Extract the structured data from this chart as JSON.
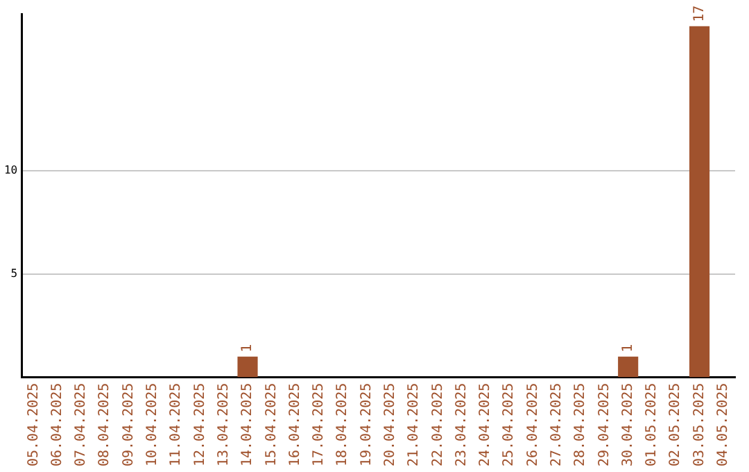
{
  "chart_data": {
    "type": "bar",
    "categories": [
      "05.04.2025",
      "06.04.2025",
      "07.04.2025",
      "08.04.2025",
      "09.04.2025",
      "10.04.2025",
      "11.04.2025",
      "12.04.2025",
      "13.04.2025",
      "14.04.2025",
      "15.04.2025",
      "16.04.2025",
      "17.04.2025",
      "18.04.2025",
      "19.04.2025",
      "20.04.2025",
      "21.04.2025",
      "22.04.2025",
      "23.04.2025",
      "24.04.2025",
      "25.04.2025",
      "26.04.2025",
      "27.04.2025",
      "28.04.2025",
      "29.04.2025",
      "30.04.2025",
      "01.05.2025",
      "02.05.2025",
      "03.05.2025",
      "04.05.2025"
    ],
    "values": [
      0,
      0,
      0,
      0,
      0,
      0,
      0,
      0,
      0,
      1,
      0,
      0,
      0,
      0,
      0,
      0,
      0,
      0,
      0,
      0,
      0,
      0,
      0,
      0,
      0,
      1,
      0,
      0,
      17,
      0
    ],
    "value_labels": [
      null,
      null,
      null,
      null,
      null,
      null,
      null,
      null,
      null,
      "1",
      null,
      null,
      null,
      null,
      null,
      null,
      null,
      null,
      null,
      null,
      null,
      null,
      null,
      null,
      null,
      "1",
      null,
      null,
      "17",
      null
    ],
    "color": "#a0522d",
    "ylim": [
      0,
      17.6
    ],
    "yticks": [
      5,
      10
    ],
    "grid": "y",
    "legend": false
  }
}
